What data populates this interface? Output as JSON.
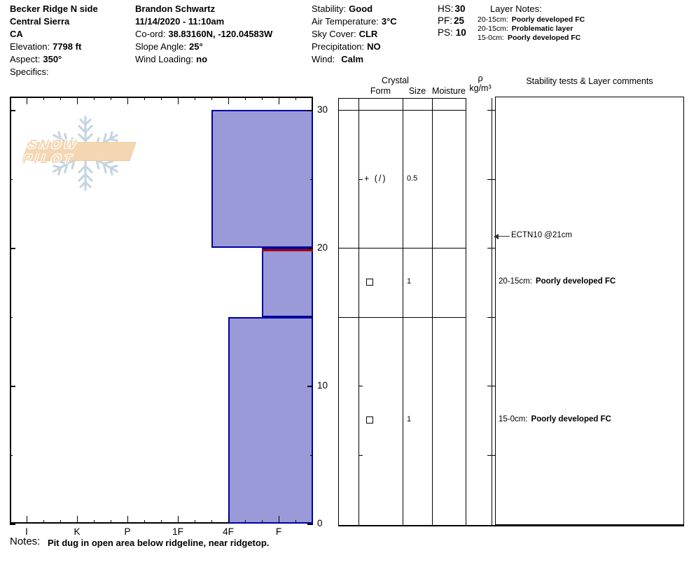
{
  "header": {
    "site": {
      "name": "Becker Ridge N side",
      "region": "Central Sierra",
      "state": "CA",
      "elevation_label": "Elevation:",
      "elevation": "7798 ft",
      "aspect_label": "Aspect:",
      "aspect": "350°",
      "specifics_label": "Specifics:",
      "specifics": ""
    },
    "observer": {
      "name": "Brandon Schwartz",
      "datetime": "11/14/2020 - 11:10am",
      "coord_label": "Co-ord:",
      "coord": "38.83160N, -120.04583W",
      "slope_label": "Slope Angle:",
      "slope": "25°",
      "wind_loading_label": "Wind Loading:",
      "wind_loading": "no"
    },
    "conditions": {
      "stability_label": "Stability:",
      "stability": "Good",
      "air_temp_label": "Air Temperature:",
      "air_temp": "3°C",
      "sky_label": "Sky Cover:",
      "sky": "CLR",
      "precip_label": "Precipitation:",
      "precip": "NO",
      "wind_label": "Wind:",
      "wind": "Calm"
    },
    "snowpack": {
      "hs_label": "HS:",
      "hs": "30",
      "pf_label": "PF:",
      "pf": "25",
      "ps_label": "PS:",
      "ps": "10"
    },
    "layer_notes": {
      "title": "Layer Notes:",
      "items": [
        {
          "range": "20-15cm:",
          "note": "Poorly developed FC"
        },
        {
          "range": "20-15cm:",
          "note": "Problematic layer"
        },
        {
          "range": "15-0cm:",
          "note": "Poorly developed FC"
        }
      ]
    }
  },
  "watermark": {
    "text": "SNOW PILOT"
  },
  "column_headers": {
    "crystal": "Crystal",
    "form": "Form",
    "size": "Size",
    "moisture": "Moisture",
    "density_rho": "ρ",
    "density_unit": "kg/m³",
    "stability": "Stability tests & Layer comments"
  },
  "chart_data": {
    "type": "bar",
    "title": "Snow pit hardness profile",
    "depth_axis": {
      "unit": "cm",
      "max": 30,
      "major_ticks": [
        30,
        20,
        10,
        0
      ],
      "minor_ticks": [
        25,
        15,
        5
      ]
    },
    "hardness_axis": {
      "labels": [
        "I",
        "K",
        "P",
        "1F",
        "4F",
        "F"
      ],
      "values": [
        6,
        5,
        4,
        3,
        2,
        1
      ]
    },
    "layers": [
      {
        "top_cm": 30,
        "bottom_cm": 20,
        "hardness": "4F+",
        "hardness_value": 2.33,
        "grain_form": "+ (/)",
        "grain_size_mm": "0.5",
        "problematic": false,
        "comment_range": "",
        "comment": ""
      },
      {
        "top_cm": 20,
        "bottom_cm": 15,
        "hardness": "F+",
        "hardness_value": 1.33,
        "grain_form": "□",
        "grain_size_mm": "1",
        "problematic": true,
        "comment_range": "20-15cm:",
        "comment": "Poorly developed FC"
      },
      {
        "top_cm": 15,
        "bottom_cm": 0,
        "hardness": "4F",
        "hardness_value": 2.0,
        "grain_form": "□",
        "grain_size_mm": "1",
        "problematic": false,
        "comment_range": "15-0cm:",
        "comment": "Poorly developed FC"
      }
    ],
    "stability_tests": [
      {
        "label": "ECTN10 @21cm",
        "depth_cm": 21
      }
    ],
    "colors": {
      "bar_fill": "#9a9ad8",
      "bar_border": "#0000a0",
      "problematic_line": "#aa0000",
      "snowflake": "#c6d5e1",
      "banner": "#f4d7b2"
    },
    "legend_position": "none",
    "grid": false
  },
  "notes": {
    "label": "Notes:",
    "text": "Pit dug in open area below ridgeline, near ridgetop."
  }
}
